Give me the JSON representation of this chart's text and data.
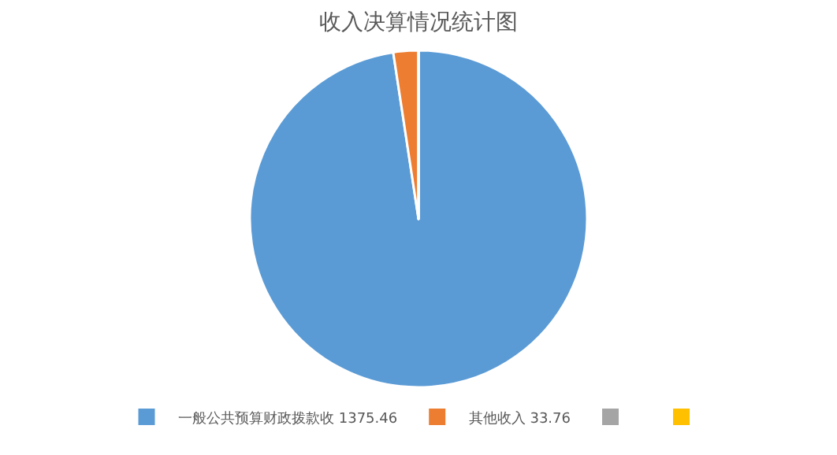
{
  "chart_data": {
    "type": "pie",
    "title": "收入决算情况统计图",
    "categories": [
      "一般公共预算财政拨款收 1375.46",
      "其他收入 33.76",
      null,
      null
    ],
    "values": [
      1375.46,
      33.76,
      0,
      0
    ],
    "colors": [
      "#5b9bd5",
      "#ed7d31",
      "#a5a5a5",
      "#ffc000"
    ],
    "legend": "bottom"
  }
}
